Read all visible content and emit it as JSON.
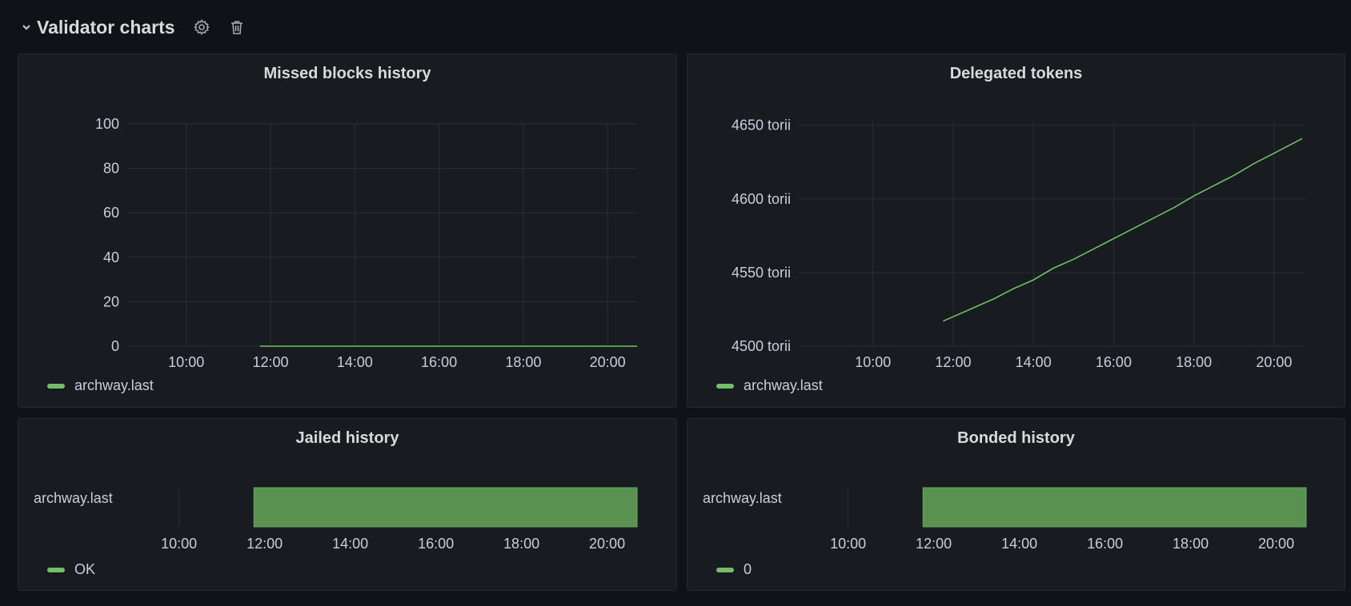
{
  "row": {
    "title": "Validator charts"
  },
  "icons": {
    "collapse": "chevron-down-icon",
    "settings": "gear-icon",
    "delete": "trash-icon"
  },
  "colors": {
    "series": "#73bf69",
    "state_fill": "#5a9050",
    "grid": "#2c2f36"
  },
  "panels": {
    "missed": {
      "title": "Missed blocks history",
      "legend": "archway.last",
      "chart_data": {
        "type": "line",
        "title": "Missed blocks history",
        "ylim": [
          0,
          100
        ],
        "y_ticks": [
          {
            "value": 0,
            "label": "0"
          },
          {
            "value": 20,
            "label": "20"
          },
          {
            "value": 40,
            "label": "40"
          },
          {
            "value": 60,
            "label": "60"
          },
          {
            "value": 80,
            "label": "80"
          },
          {
            "value": 100,
            "label": "100"
          }
        ],
        "xlim": [
          8.6,
          20.7
        ],
        "x_ticks": [
          {
            "value": 10,
            "label": "10:00"
          },
          {
            "value": 12,
            "label": "12:00"
          },
          {
            "value": 14,
            "label": "14:00"
          },
          {
            "value": 16,
            "label": "16:00"
          },
          {
            "value": 18,
            "label": "18:00"
          },
          {
            "value": 20,
            "label": "20:00"
          }
        ],
        "series": [
          {
            "name": "archway.last",
            "x": [
              11.75,
              12.5,
              13.5,
              14.5,
              15.5,
              16.5,
              17.5,
              18.5,
              19.5,
              20.7
            ],
            "y": [
              0,
              0,
              0,
              0,
              0,
              0,
              0,
              0,
              0,
              0
            ]
          }
        ]
      }
    },
    "delegated": {
      "title": "Delegated tokens",
      "legend": "archway.last",
      "chart_data": {
        "type": "line",
        "title": "Delegated tokens",
        "ylim": [
          4500,
          4652
        ],
        "y_ticks": [
          {
            "value": 4500,
            "label": "4500 torii"
          },
          {
            "value": 4550,
            "label": "4550 torii"
          },
          {
            "value": 4600,
            "label": "4600 torii"
          },
          {
            "value": 4650,
            "label": "4650 torii"
          }
        ],
        "xlim": [
          8.15,
          20.8
        ],
        "x_ticks": [
          {
            "value": 10,
            "label": "10:00"
          },
          {
            "value": 12,
            "label": "12:00"
          },
          {
            "value": 14,
            "label": "14:00"
          },
          {
            "value": 16,
            "label": "16:00"
          },
          {
            "value": 18,
            "label": "18:00"
          },
          {
            "value": 20,
            "label": "20:00"
          }
        ],
        "series": [
          {
            "name": "archway.last",
            "x": [
              11.75,
              12.5,
              13.0,
              13.5,
              14.0,
              14.5,
              15.0,
              15.5,
              16.0,
              16.5,
              17.0,
              17.5,
              18.0,
              18.5,
              19.0,
              19.5,
              20.0,
              20.7
            ],
            "y": [
              4517,
              4526,
              4532,
              4539,
              4545,
              4553,
              4559,
              4566,
              4573,
              4580,
              4587,
              4594,
              4602,
              4609,
              4616,
              4624,
              4631,
              4641
            ]
          }
        ]
      }
    },
    "jailed": {
      "title": "Jailed history",
      "row_label": "archway.last",
      "legend": "OK",
      "chart_data": {
        "type": "state-timeline",
        "title": "Jailed history",
        "rows": [
          "archway.last"
        ],
        "xlim": [
          8.1,
          20.7
        ],
        "x_ticks": [
          {
            "value": 10,
            "label": "10:00"
          },
          {
            "value": 12,
            "label": "12:00"
          },
          {
            "value": 14,
            "label": "14:00"
          },
          {
            "value": 16,
            "label": "16:00"
          },
          {
            "value": 18,
            "label": "18:00"
          },
          {
            "value": 20,
            "label": "20:00"
          }
        ],
        "segments": [
          {
            "row": "archway.last",
            "start": 11.75,
            "end": 20.7,
            "state": "OK"
          }
        ]
      }
    },
    "bonded": {
      "title": "Bonded history",
      "row_label": "archway.last",
      "legend": "0",
      "chart_data": {
        "type": "state-timeline",
        "title": "Bonded history",
        "rows": [
          "archway.last"
        ],
        "xlim": [
          8.1,
          20.7
        ],
        "x_ticks": [
          {
            "value": 10,
            "label": "10:00"
          },
          {
            "value": 12,
            "label": "12:00"
          },
          {
            "value": 14,
            "label": "14:00"
          },
          {
            "value": 16,
            "label": "16:00"
          },
          {
            "value": 18,
            "label": "18:00"
          },
          {
            "value": 20,
            "label": "20:00"
          }
        ],
        "segments": [
          {
            "row": "archway.last",
            "start": 11.75,
            "end": 20.7,
            "state": "0"
          }
        ]
      }
    }
  }
}
